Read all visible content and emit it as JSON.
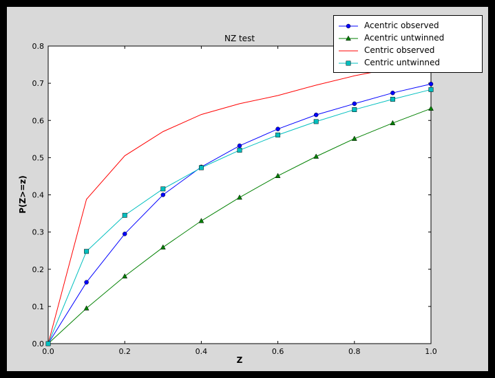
{
  "window": {
    "border_color": "#000000",
    "figure_bg": "#d9d9d9",
    "axes_bg": "#ffffff"
  },
  "chart_data": {
    "type": "line",
    "title": "NZ test",
    "xlabel": "Z",
    "ylabel": "P(Z>=z)",
    "xlim": [
      0.0,
      1.0
    ],
    "ylim": [
      0.0,
      0.8
    ],
    "grid": false,
    "legend_position": "upper right",
    "xticks": [
      "0.0",
      "0.2",
      "0.4",
      "0.6",
      "0.8",
      "1.0"
    ],
    "xtick_values": [
      0.0,
      0.2,
      0.4,
      0.6,
      0.8,
      1.0
    ],
    "yticks": [
      "0.0",
      "0.1",
      "0.2",
      "0.3",
      "0.4",
      "0.5",
      "0.6",
      "0.7",
      "0.8"
    ],
    "ytick_values": [
      0.0,
      0.1,
      0.2,
      0.3,
      0.4,
      0.5,
      0.6,
      0.7,
      0.8
    ],
    "x": [
      0.0,
      0.1,
      0.2,
      0.3,
      0.4,
      0.5,
      0.6,
      0.7,
      0.8,
      0.9,
      1.0
    ],
    "series": [
      {
        "name": "Acentric observed",
        "color": "#0000ff",
        "marker": "circle",
        "values": [
          0.0,
          0.165,
          0.295,
          0.4,
          0.475,
          0.532,
          0.577,
          0.615,
          0.645,
          0.674,
          0.698
        ]
      },
      {
        "name": "Acentric untwinned",
        "color": "#008000",
        "marker": "triangle",
        "values": [
          0.0,
          0.095,
          0.181,
          0.259,
          0.33,
          0.393,
          0.451,
          0.503,
          0.551,
          0.593,
          0.632
        ]
      },
      {
        "name": "Centric observed",
        "color": "#ff0000",
        "marker": "none",
        "values": [
          0.0,
          0.388,
          0.505,
          0.57,
          0.616,
          0.645,
          0.667,
          0.695,
          0.72,
          0.74,
          0.757
        ]
      },
      {
        "name": "Centric untwinned",
        "color": "#00bfbf",
        "marker": "square",
        "values": [
          0.0,
          0.248,
          0.345,
          0.416,
          0.473,
          0.52,
          0.561,
          0.597,
          0.629,
          0.657,
          0.683
        ]
      }
    ]
  }
}
